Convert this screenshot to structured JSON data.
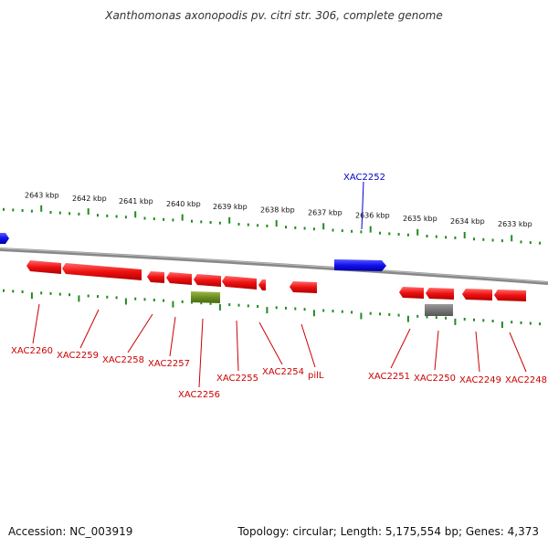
{
  "title": "Xanthomonas axonopodis pv. citri str. 306, complete genome",
  "footer": {
    "accession": "Accession: NC_003919",
    "stats": "Topology: circular; Length: 5,175,554 bp; Genes: 4,373"
  },
  "colors": {
    "forward_gene": "#ee1111",
    "selected_gene": "#1111ee",
    "rna_gene": "#6b8e23",
    "other_gene": "#777777",
    "backbone": "#888888",
    "ticks": "#228b22",
    "label_red": "#cc0000",
    "label_blue": "#0000cc"
  },
  "scale_ticks": [
    "2643 kbp",
    "2642 kbp",
    "2641 kbp",
    "2640 kbp",
    "2639 kbp",
    "2638 kbp",
    "2637 kbp",
    "2636 kbp",
    "2635 kbp",
    "2634 kbp",
    "2633 kbp"
  ],
  "genes": [
    {
      "label": "XAC2260",
      "color": "forward_gene"
    },
    {
      "label": "XAC2259",
      "color": "forward_gene"
    },
    {
      "label": "XAC2258",
      "color": "forward_gene"
    },
    {
      "label": "XAC2257",
      "color": "forward_gene"
    },
    {
      "label": "XAC2256",
      "color": "rna_gene"
    },
    {
      "label": "XAC2255",
      "color": "forward_gene"
    },
    {
      "label": "XAC2254",
      "color": "forward_gene"
    },
    {
      "label": "pilL",
      "color": "forward_gene"
    },
    {
      "label": "XAC2252",
      "color": "selected_gene"
    },
    {
      "label": "XAC2251",
      "color": "forward_gene"
    },
    {
      "label": "XAC2250",
      "color": "other_gene"
    },
    {
      "label": "XAC2249",
      "color": "forward_gene"
    },
    {
      "label": "XAC2248",
      "color": "forward_gene"
    }
  ]
}
